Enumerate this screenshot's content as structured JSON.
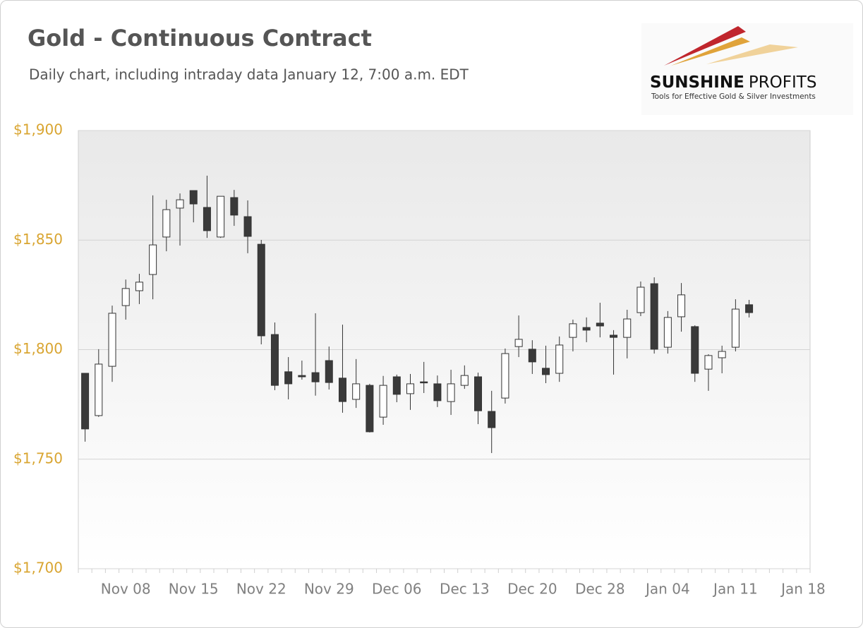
{
  "chart_data": {
    "type": "candlestick",
    "title": "Gold - Continuous Contract",
    "subtitle": "Daily chart, including intraday data January 12, 7:00 a.m. EDT",
    "categories": [
      null,
      null,
      null,
      "Nov 08",
      null,
      null,
      null,
      null,
      "Nov 15",
      null,
      null,
      null,
      null,
      "Nov 22",
      null,
      null,
      null,
      null,
      "Nov 29",
      null,
      null,
      null,
      null,
      "Dec 06",
      null,
      null,
      null,
      null,
      "Dec 13",
      null,
      null,
      null,
      null,
      "Dec 20",
      null,
      null,
      null,
      null,
      "Dec 28",
      null,
      null,
      null,
      null,
      "Jan 04",
      null,
      null,
      null,
      null,
      "Jan 11",
      null,
      null,
      null,
      null,
      "Jan 18"
    ],
    "open": [
      1789.2,
      1769.9,
      1792.4,
      1820.1,
      1826.9,
      1834.3,
      1851.4,
      1864.6,
      1872.6,
      1864.9,
      1851.4,
      1869.4,
      1860.7,
      1848.1,
      1806.9,
      1789.9,
      1788.2,
      1789.5,
      1795,
      1787,
      1777.3,
      1783.7,
      1769.2,
      1787.6,
      1779.9,
      1785.3,
      1784.4,
      1776.3,
      1783.7,
      1787.6,
      1771.8,
      1777.9,
      1801.4,
      1800.2,
      1791.5,
      1789.2,
      1805.6,
      1810.1,
      1812.1,
      1806.6,
      1805.6,
      1816.9,
      1830.1,
      1801.1,
      1815,
      1810.5,
      1791.1,
      1796.3,
      1801.1,
      1820.5,
      null,
      null,
      null,
      null
    ],
    "high": [
      1789.2,
      1800.2,
      1820.1,
      1832,
      1834.6,
      1870.4,
      1868.4,
      1871.3,
      1872.6,
      1879.4,
      1870,
      1872.9,
      1868.1,
      1850.1,
      1812.4,
      1796.6,
      1795,
      1816.6,
      1801.4,
      1811.4,
      1795.7,
      1784.4,
      1788,
      1788.6,
      1788.9,
      1794.4,
      1788.2,
      1790.8,
      1792.8,
      1789.5,
      1781.2,
      1800.5,
      1815.6,
      1804.3,
      1801.8,
      1806,
      1813.7,
      1814.7,
      1821.4,
      1808.9,
      1818.2,
      1831.1,
      1833,
      1817.6,
      1830.4,
      1811.1,
      1797.9,
      1801.8,
      1823,
      1822.7,
      null,
      null,
      null,
      null
    ],
    "low": [
      1758,
      1769.3,
      1785.3,
      1813.7,
      1820.8,
      1823,
      1844.9,
      1847.5,
      1858.1,
      1851,
      1851,
      1856.5,
      1844,
      1802.4,
      1781.5,
      1777.3,
      1786.3,
      1779,
      1781.8,
      1771.2,
      1773.4,
      1762.2,
      1765.7,
      1776,
      1772.5,
      1780.2,
      1773.8,
      1770.2,
      1782.1,
      1766,
      1752.8,
      1775.4,
      1796.6,
      1788.9,
      1784.7,
      1785.3,
      1799.2,
      1803.4,
      1805.6,
      1788.6,
      1796,
      1815.3,
      1798.2,
      1798.2,
      1808.2,
      1785.3,
      1781.2,
      1789.2,
      1799.2,
      1814.7,
      null,
      null,
      null,
      null
    ],
    "close": [
      1763.8,
      1793.4,
      1816.6,
      1827.9,
      1830.8,
      1847.8,
      1863.9,
      1868.4,
      1866.5,
      1854.3,
      1870,
      1861.4,
      1851.7,
      1806.3,
      1783.7,
      1784.4,
      1787.6,
      1785.3,
      1785,
      1776.3,
      1784.4,
      1762.5,
      1783.7,
      1779.6,
      1784.4,
      1785,
      1776.7,
      1784.4,
      1788.2,
      1772.1,
      1764.4,
      1798.2,
      1804.7,
      1794.4,
      1788.6,
      1802.1,
      1811.8,
      1808.9,
      1810.8,
      1805.6,
      1814,
      1828.5,
      1800.2,
      1814.7,
      1825,
      1789.2,
      1797.3,
      1799.2,
      1818.5,
      1816.9,
      null,
      null,
      null,
      null
    ],
    "up_color": "#ffffff",
    "down_color": "#3a3a3a",
    "ylim": [
      1700,
      1900
    ],
    "yticks": [
      {
        "value": 1700,
        "label": "$1,700"
      },
      {
        "value": 1750,
        "label": "$1,750"
      },
      {
        "value": 1800,
        "label": "$1,800"
      },
      {
        "value": 1850,
        "label": "$1,850"
      },
      {
        "value": 1900,
        "label": "$1,900"
      }
    ],
    "grid": true
  },
  "logo": {
    "brand_bold": "SUNSHINE",
    "brand_light": "PROFITS",
    "tagline": "Tools for Effective Gold & Silver Investments"
  }
}
